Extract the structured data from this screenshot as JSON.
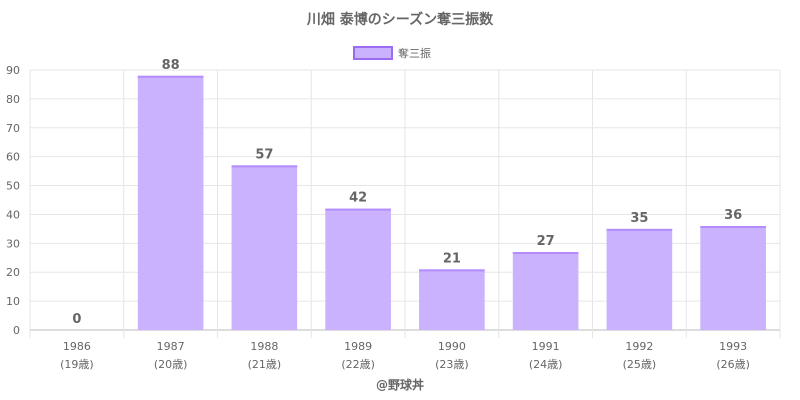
{
  "chart_data": {
    "type": "bar",
    "title": "川畑 泰博のシーズン奪三振数",
    "categories": [
      "1986",
      "1987",
      "1988",
      "1989",
      "1990",
      "1991",
      "1992",
      "1993"
    ],
    "ages": [
      "(19歳)",
      "(20歳)",
      "(21歳)",
      "(22歳)",
      "(23歳)",
      "(24歳)",
      "(25歳)",
      "(26歳)"
    ],
    "series": [
      {
        "name": "奪三振",
        "values": [
          0,
          88,
          57,
          42,
          21,
          27,
          35,
          36
        ]
      }
    ],
    "y_ticks": [
      "0",
      "10",
      "20",
      "30",
      "40",
      "50",
      "60",
      "70",
      "80",
      "90"
    ],
    "ylim": [
      0,
      90
    ],
    "grid": true,
    "legend_position": "top",
    "bar_fill": "#cbb2ff",
    "bar_stroke": "#b38cff",
    "footer": "@野球丼"
  }
}
